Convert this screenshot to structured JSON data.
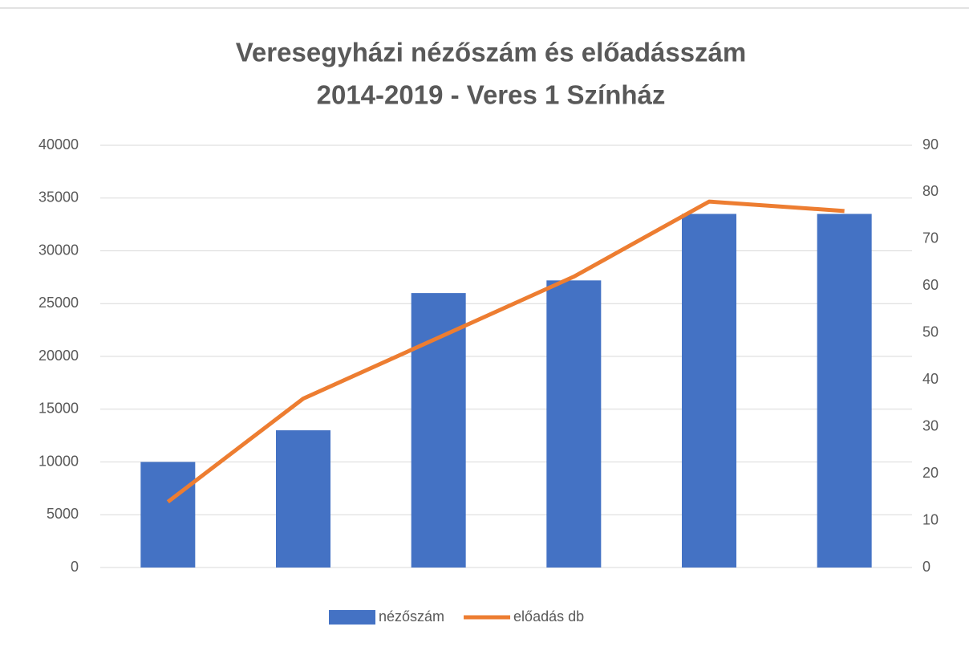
{
  "chart_data": {
    "type": "bar",
    "title": [
      "Veresegyházi nézőszám és előadásszám",
      "2014-2019 - Veres 1 Színház"
    ],
    "categories": [
      null,
      null,
      null,
      null,
      null,
      null
    ],
    "series": [
      {
        "name": "nézőszám",
        "type": "bar",
        "color": "#4472c4",
        "values": [
          10000,
          13000,
          26000,
          27200,
          33500,
          33500
        ]
      },
      {
        "name": "előadás db",
        "type": "line",
        "axis": "y2",
        "color": "#ed7d31",
        "values": [
          14,
          36,
          49,
          62,
          78,
          76
        ]
      }
    ],
    "ylim": [
      0,
      40000
    ],
    "yticks": [
      0,
      5000,
      10000,
      15000,
      20000,
      25000,
      30000,
      35000,
      40000
    ],
    "y2lim": [
      0,
      90
    ],
    "y2ticks": [
      0,
      10,
      20,
      30,
      40,
      50,
      60,
      70,
      80,
      90
    ],
    "grid": true,
    "legend": "bottom"
  }
}
